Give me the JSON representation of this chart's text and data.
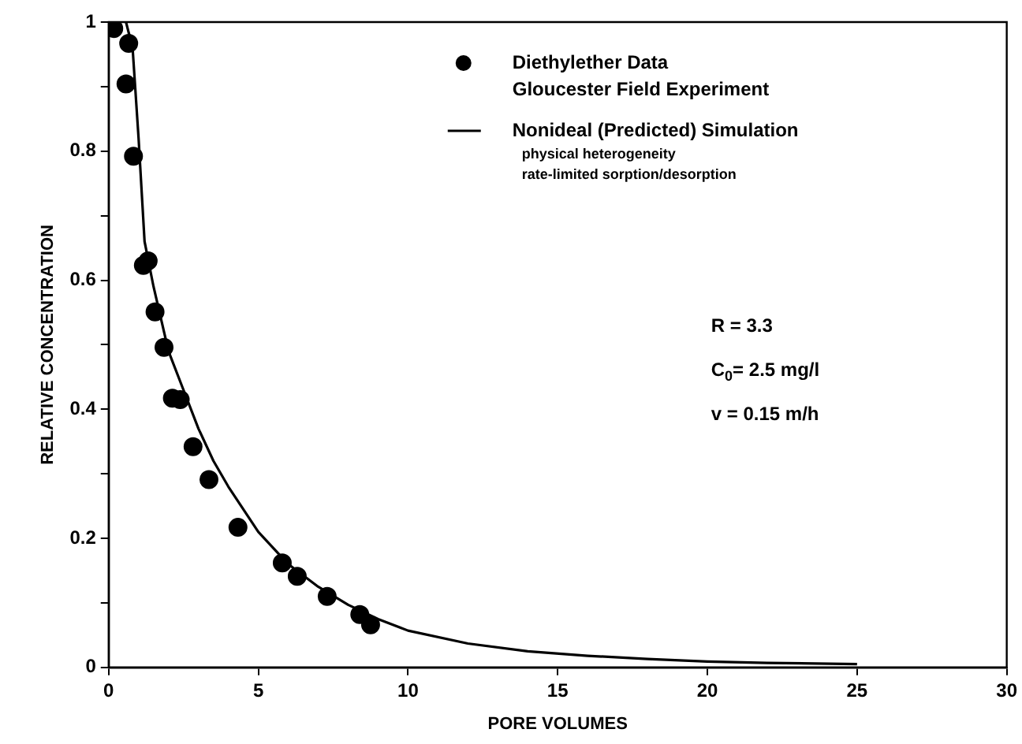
{
  "chart_data": {
    "type": "scatter",
    "xlabel": "PORE VOLUMES",
    "ylabel": "RELATIVE CONCENTRATION",
    "xlim": [
      0,
      30
    ],
    "xticks": [
      0,
      5,
      10,
      15,
      20,
      25,
      30
    ],
    "ylim": [
      0,
      1
    ],
    "yticks": [
      0,
      {
        "value": 0.1,
        "label": null
      },
      0.2,
      {
        "value": 0.3,
        "label": null
      },
      0.4,
      {
        "value": 0.5,
        "label": null
      },
      0.6,
      {
        "value": 0.7,
        "label": null
      },
      0.8,
      {
        "value": 0.9,
        "label": null
      },
      1
    ],
    "grid": false,
    "legend": "top right",
    "series": [
      {
        "name": "Diethylether Data\nGloucester Field Experiment",
        "marker": "circle",
        "color": "#000000",
        "x": [
          0.17,
          0.67,
          0.58,
          0.83,
          1.16,
          1.32,
          1.55,
          1.85,
          2.13,
          2.39,
          2.82,
          3.35,
          4.32,
          5.8,
          6.3,
          7.3,
          8.39,
          8.75
        ],
        "values": [
          0.99,
          0.967,
          0.904,
          0.792,
          0.623,
          0.63,
          0.551,
          0.496,
          0.417,
          0.415,
          0.342,
          0.291,
          0.217,
          0.162,
          0.141,
          0.11,
          0.082,
          0.066
        ]
      },
      {
        "name": "Nonideal (Predicted) Simulation\nphysical heterogeneity\nrate-limited sorption/desorption",
        "type": "line",
        "marker": "none",
        "line_style": "solid",
        "color": "#000000",
        "x": [
          0.58,
          0.8,
          1.0,
          1.2,
          1.5,
          2.0,
          2.5,
          3.0,
          3.5,
          4.0,
          5,
          6,
          7,
          8,
          9,
          10,
          12,
          14,
          16,
          18,
          20,
          22,
          25
        ],
        "values": [
          1,
          0.96,
          0.82,
          0.66,
          0.59,
          0.49,
          0.43,
          0.37,
          0.32,
          0.28,
          0.21,
          0.16,
          0.125,
          0.097,
          0.075,
          0.057,
          0.037,
          0.025,
          0.018,
          0.013,
          0.009,
          0.007,
          0.005
        ]
      }
    ],
    "annotations": [
      "R = 3.3",
      "C$_{0}$= 2.5 mg/l",
      "v = 0.15 m/h"
    ]
  }
}
